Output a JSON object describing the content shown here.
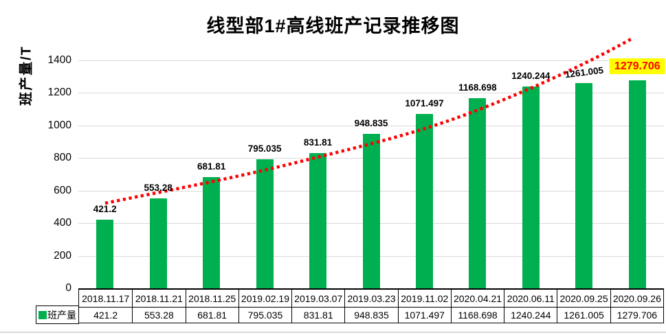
{
  "chart_data": {
    "type": "bar",
    "title": "线型部1#高线班产记录推移图",
    "ylabel": "班产量/T",
    "series_name": "班产量",
    "categories": [
      "2018.11.17",
      "2018.11.21",
      "2018.11.25",
      "2019.02.19",
      "2019.03.07",
      "2019.03.23",
      "2019.11.02",
      "2020.04.21",
      "2020.06.11",
      "2020.09.25",
      "2020.09.26"
    ],
    "values": [
      421.2,
      553.28,
      681.81,
      795.035,
      831.81,
      948.835,
      1071.497,
      1168.698,
      1240.244,
      1261.005,
      1279.706
    ],
    "value_labels": [
      "421.2",
      "553.28",
      "681.81",
      "795.035",
      "831.81",
      "948.835",
      "1071.497",
      "1168.698",
      "1240.244",
      "1261.005",
      "1279.706"
    ],
    "ylim": [
      0,
      1400
    ],
    "yticks": [
      "0",
      "200",
      "400",
      "600",
      "800",
      "1000",
      "1200",
      "1400"
    ],
    "grid": true,
    "legend_position": "table-left",
    "highlighted_index": 10,
    "tilted_label_index": 9,
    "trendline": {
      "style": "dotted",
      "shape": "smooth-increasing",
      "color": "#FF0000"
    },
    "colors": {
      "bar": "#00B050",
      "legend_swatch": "#00B050",
      "gridline": "#D9D9D9",
      "trend_line": "#FF0000",
      "highlight_bg": "#FFFF00",
      "highlight_text": "#FF0000",
      "text": "#000000"
    }
  }
}
